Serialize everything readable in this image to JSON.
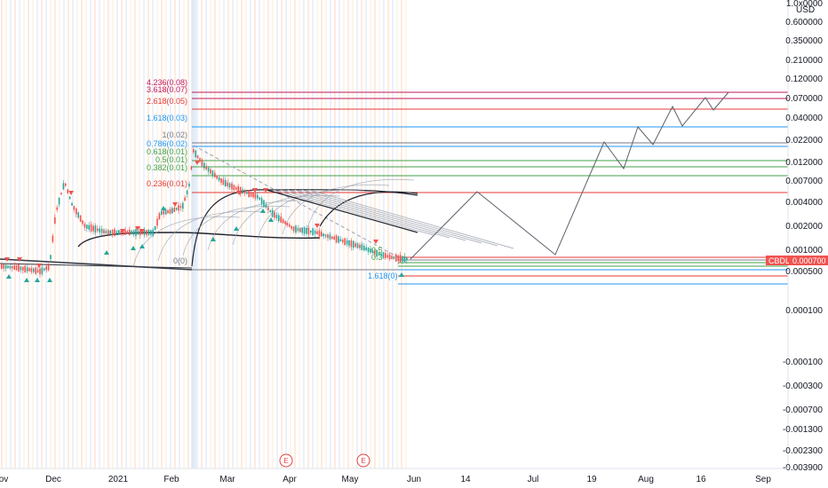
{
  "chart_data": {
    "type": "candlestick",
    "symbol": "CBDL",
    "currency": "USD",
    "last_price": "0.000700",
    "scale": "log",
    "y_labels": [
      "1.0x0000",
      "0.600000",
      "0.350000",
      "0.210000",
      "0.120000",
      "0.070000",
      "0.040000",
      "0.022000",
      "0.012000",
      "0.007000",
      "0.004000",
      "0.002000",
      "0.001000",
      "0.000500",
      "0.000100",
      "-0.000100",
      "-0.000300",
      "-0.000700",
      "-0.001300",
      "-0.002300",
      "-0.003900"
    ],
    "x_labels": [
      "ov",
      "Dec",
      "2021",
      "Feb",
      "Mar",
      "Apr",
      "May",
      "Jun",
      "14",
      "Jul",
      "19",
      "Aug",
      "16",
      "Sep"
    ],
    "fib_upper": [
      "4.236(0.08)",
      "3.618(0.07)",
      "2.618(0.05)",
      "1.618(0.03)",
      "1(0.02)",
      "0.786(0.02)",
      "0.618(0.01)",
      "0.5(0.01)",
      "0.382(0.01)",
      "0.236(0.01)",
      "0(0)"
    ],
    "fib_lower": [
      "0.5",
      "0.3",
      "1.618(0)"
    ],
    "events": [
      "E",
      "E"
    ]
  },
  "colors": {
    "up": "#26a69a",
    "down": "#ef5350",
    "fib_red": "#e53935",
    "fib_blue": "#2196f3",
    "fib_green": "#43a047",
    "fib_gray": "#787b86",
    "fib_magenta": "#c2185b",
    "badge": "#ef5350",
    "projection": "#5d606b"
  }
}
